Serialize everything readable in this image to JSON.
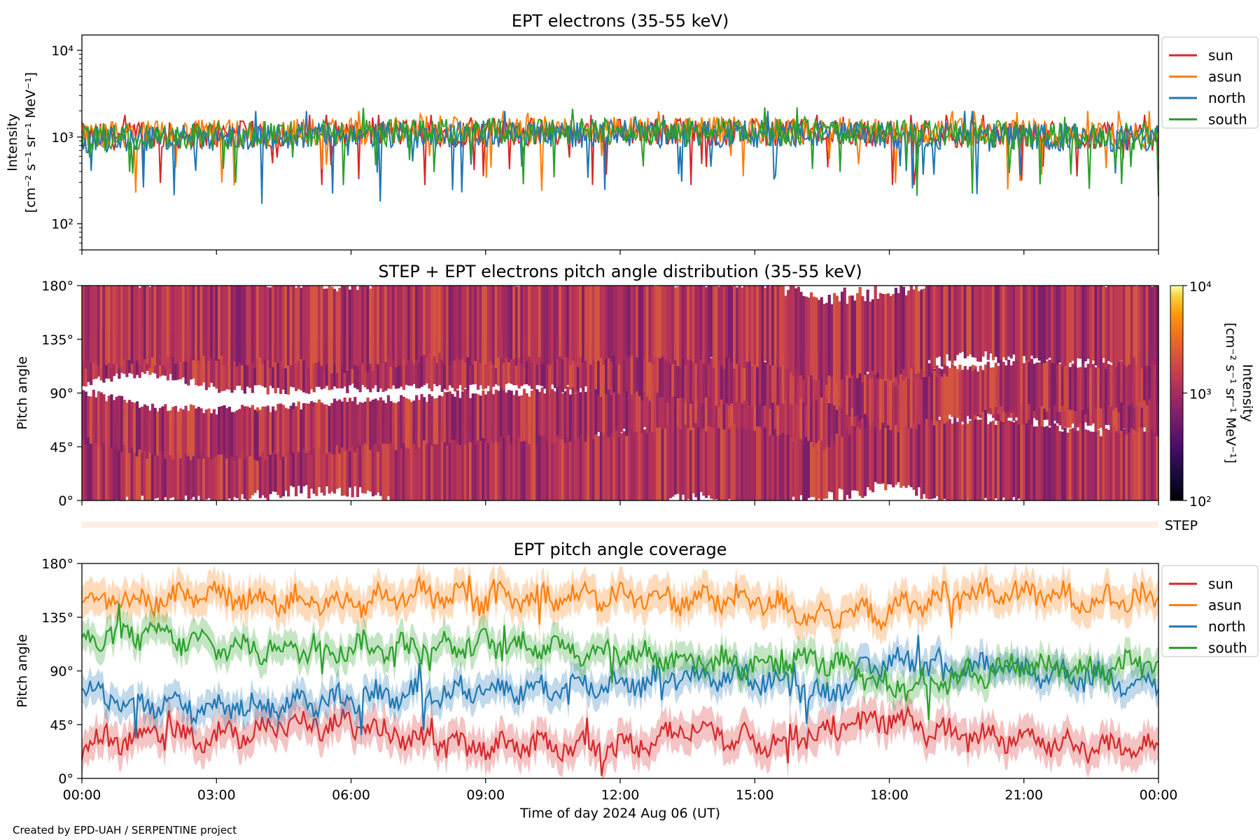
{
  "credit": "Created by EPD-UAH / SERPENTINE project",
  "colors": {
    "sun": "#d62728",
    "asun": "#ff7f0e",
    "north": "#1f77b4",
    "south": "#2ca02c",
    "step_band": "#fdeee6"
  },
  "chart_data": [
    {
      "type": "line",
      "title": "EPT electrons (35-55 keV)",
      "ylabel": "Intensity",
      "ylabel2": "[cm⁻² s⁻¹ sr⁻¹ MeV⁻¹]",
      "yscale": "log",
      "ylim": [
        50,
        15000
      ],
      "y_ticks": [
        {
          "value": 100,
          "label": "10²"
        },
        {
          "value": 1000,
          "label": "10³"
        },
        {
          "value": 10000,
          "label": "10⁴"
        }
      ],
      "xlim": [
        0,
        24
      ],
      "x_unit": "hours UT",
      "legend": "outside-right",
      "series": [
        {
          "name": "sun",
          "color": "#d62728",
          "typical": 1000,
          "min": 280,
          "max": 1800
        },
        {
          "name": "asun",
          "color": "#ff7f0e",
          "typical": 1050,
          "min": 170,
          "max": 2000
        },
        {
          "name": "north",
          "color": "#1f77b4",
          "typical": 950,
          "min": 170,
          "max": 2000
        },
        {
          "name": "south",
          "color": "#2ca02c",
          "typical": 1000,
          "min": 210,
          "max": 2200
        }
      ]
    },
    {
      "type": "heatmap",
      "title": "STEP + EPT electrons pitch angle distribution (35-55 keV)",
      "ylabel": "Pitch angle",
      "ylim": [
        0,
        180
      ],
      "y_ticks": [
        "0°",
        "45°",
        "90°",
        "135°",
        "180°"
      ],
      "xlim": [
        0,
        24
      ],
      "colorbar": {
        "label": "Intensity",
        "label2": "[cm⁻² s⁻¹ sr⁻¹ MeV⁻¹]",
        "scale": "log",
        "range": [
          100,
          10000
        ],
        "ticks": [
          "10²",
          "10³",
          "10⁴"
        ],
        "colormap": "inferno"
      },
      "typical_intensity": 1000,
      "step_label": "STEP"
    },
    {
      "type": "line",
      "title": "EPT pitch angle coverage",
      "xlabel": "Time of day 2024 Aug 06 (UT)",
      "ylabel": "Pitch angle",
      "ylim": [
        0,
        180
      ],
      "y_ticks": [
        "0°",
        "45°",
        "90°",
        "135°",
        "180°"
      ],
      "xlim": [
        0,
        24
      ],
      "x_ticks": [
        "00:00",
        "03:00",
        "06:00",
        "09:00",
        "12:00",
        "15:00",
        "18:00",
        "21:00",
        "00:00"
      ],
      "legend": "outside-right",
      "series": [
        {
          "name": "sun",
          "color": "#d62728",
          "x": [
            0,
            1.5,
            3,
            4.5,
            6,
            7.5,
            9,
            10.5,
            12,
            13.5,
            15,
            16.5,
            18,
            19.5,
            21,
            22.5,
            24
          ],
          "y": [
            30,
            38,
            35,
            45,
            45,
            30,
            28,
            28,
            25,
            42,
            30,
            40,
            50,
            35,
            35,
            25,
            30
          ],
          "band_halfwidth": 14
        },
        {
          "name": "asun",
          "color": "#ff7f0e",
          "x": [
            0,
            1.5,
            3,
            4.5,
            6,
            7.5,
            9,
            10.5,
            12,
            13.5,
            15,
            16.5,
            18,
            19.5,
            21,
            22.5,
            24
          ],
          "y": [
            150,
            150,
            152,
            150,
            145,
            155,
            150,
            152,
            152,
            150,
            150,
            135,
            140,
            155,
            155,
            150,
            150
          ],
          "band_halfwidth": 14
        },
        {
          "name": "north",
          "color": "#1f77b4",
          "x": [
            0,
            1.5,
            3,
            4.5,
            6,
            7.5,
            9,
            10.5,
            12,
            13.5,
            15,
            16.5,
            18,
            19.5,
            21,
            22.5,
            24
          ],
          "y": [
            75,
            62,
            60,
            62,
            68,
            70,
            75,
            75,
            80,
            85,
            85,
            70,
            100,
            95,
            90,
            85,
            80
          ],
          "band_halfwidth": 12
        },
        {
          "name": "south",
          "color": "#2ca02c",
          "x": [
            0,
            1.5,
            3,
            4.5,
            6,
            7.5,
            9,
            10.5,
            12,
            13.5,
            15,
            16.5,
            18,
            19.5,
            21,
            22.5,
            24
          ],
          "y": [
            115,
            122,
            110,
            108,
            110,
            110,
            112,
            110,
            105,
            100,
            95,
            100,
            75,
            85,
            95,
            90,
            100
          ],
          "band_halfwidth": 12
        }
      ]
    }
  ]
}
